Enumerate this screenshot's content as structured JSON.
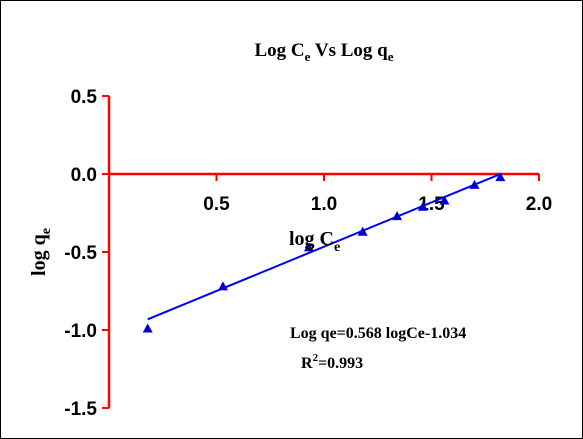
{
  "chart_data": {
    "type": "scatter",
    "title": "Log C",
    "title_sub": "e",
    "title_mid": " Vs Log q",
    "title_sub2": "e",
    "xlabel": "log C",
    "xlabel_sub": "e",
    "ylabel": "log q",
    "ylabel_sub": "e",
    "xlim": [
      0,
      2.0
    ],
    "ylim": [
      -1.5,
      0.5
    ],
    "xticks": [
      "0.5",
      "1.0",
      "1.5",
      "2.0"
    ],
    "xtick_values": [
      0.5,
      1.0,
      1.5,
      2.0
    ],
    "yticks": [
      "0.5",
      "0.0",
      "-0.5",
      "-1.0",
      "-1.5"
    ],
    "ytick_values": [
      0.5,
      0.0,
      -0.5,
      -1.0,
      -1.5
    ],
    "grid": false,
    "colors": {
      "axis": "#ff0000",
      "points": "#0000cc",
      "line": "#0000ff",
      "frame": "#000000"
    },
    "series": [
      {
        "marker": "triangle",
        "x": [
          0.18,
          0.53,
          0.93,
          1.18,
          1.34,
          1.46,
          1.56,
          1.7,
          1.82
        ],
        "y": [
          -0.99,
          -0.72,
          -0.47,
          -0.37,
          -0.27,
          -0.21,
          -0.17,
          -0.07,
          -0.02
        ]
      }
    ],
    "fit": {
      "slope": 0.568,
      "intercept": -1.034,
      "x_range": [
        0.18,
        1.82
      ]
    },
    "annotations": {
      "equation": "Log qe=0.568 logCe-1.034",
      "r2_label": "R",
      "r2_sup": "2",
      "r2_value": "=0.993"
    }
  }
}
